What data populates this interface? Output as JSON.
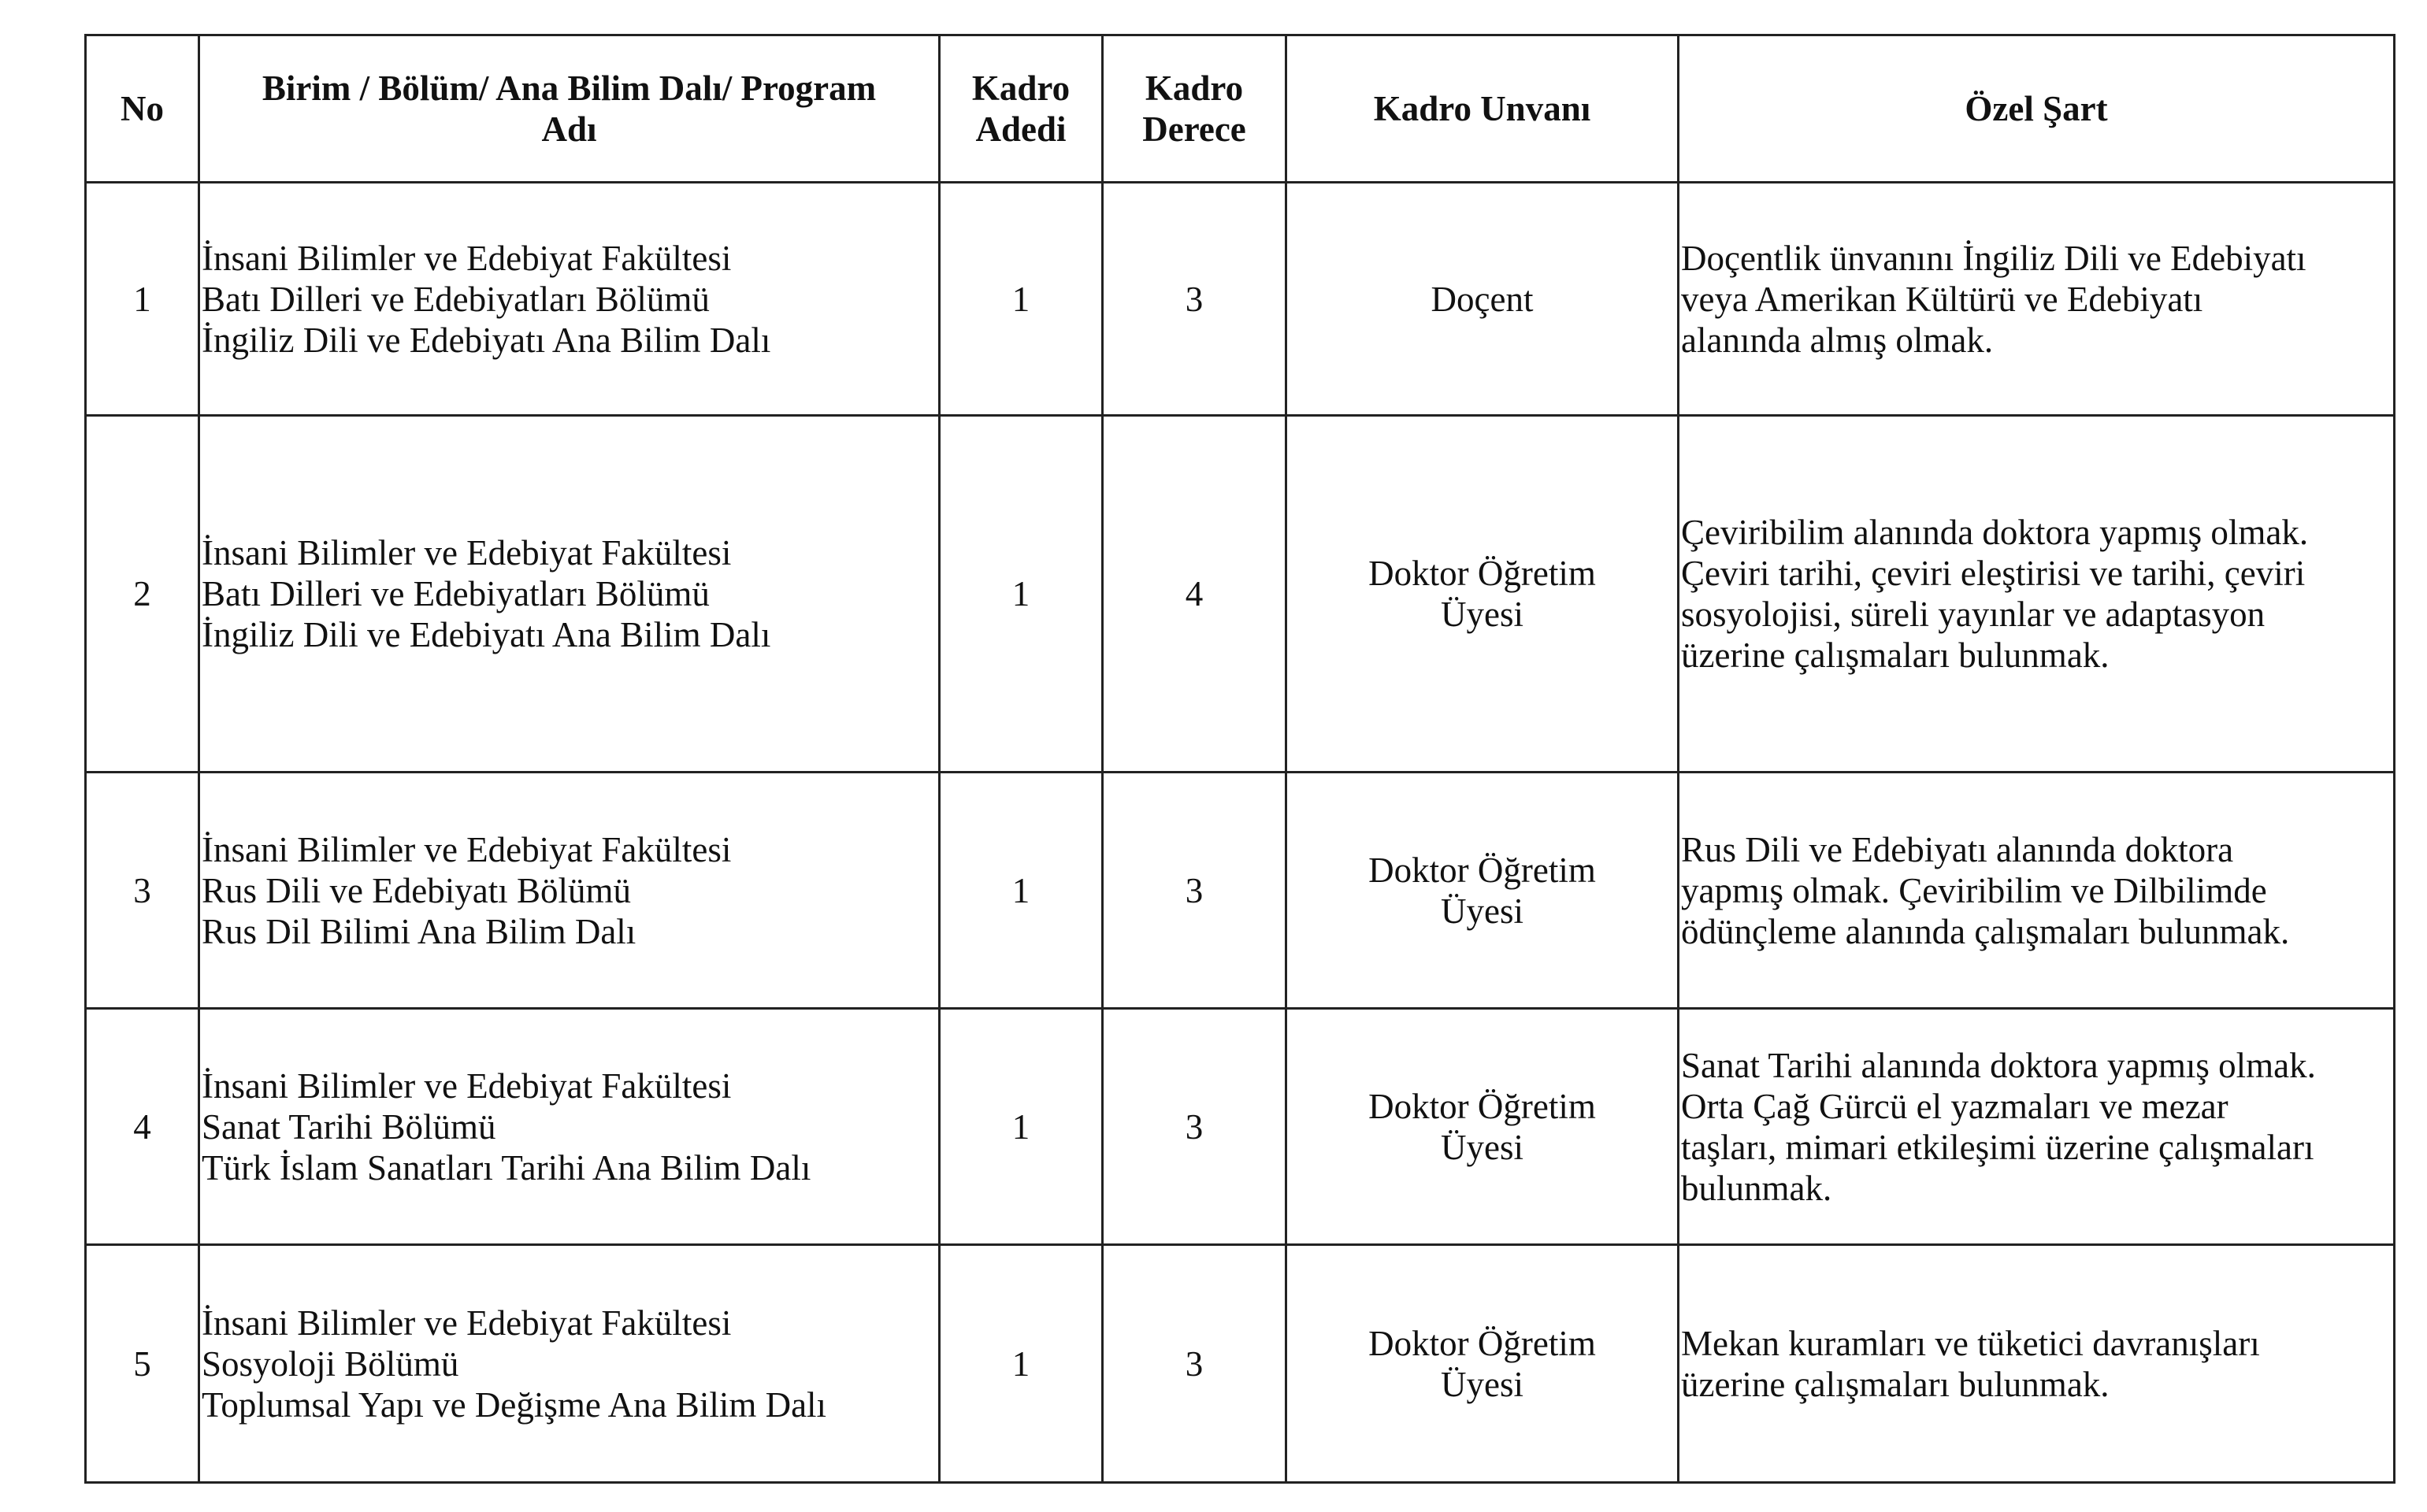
{
  "headers": {
    "no": "No",
    "unit": [
      "Birim / Bölüm/ Ana Bilim Dalı/ Program",
      "Adı"
    ],
    "count": [
      "Kadro",
      "Adedi"
    ],
    "degree": [
      "Kadro",
      "Derece"
    ],
    "title": "Kadro Unvanı",
    "condition": "Özel Şart"
  },
  "rows": [
    {
      "no": "1",
      "unit": [
        "İnsani Bilimler ve Edebiyat Fakültesi",
        "Batı Dilleri ve Edebiyatları Bölümü",
        "İngiliz Dili ve Edebiyatı Ana Bilim Dalı"
      ],
      "count": "1",
      "degree": "3",
      "title": [
        "Doçent"
      ],
      "condition": [
        "Doçentlik ünvanını İngiliz Dili ve Edebiyatı",
        "veya Amerikan Kültürü ve Edebiyatı",
        "alanında almış olmak."
      ]
    },
    {
      "no": "2",
      "unit": [
        "İnsani Bilimler ve Edebiyat Fakültesi",
        "Batı Dilleri ve Edebiyatları Bölümü",
        "İngiliz Dili ve Edebiyatı Ana Bilim Dalı"
      ],
      "count": "1",
      "degree": "4",
      "title": [
        "Doktor Öğretim",
        "Üyesi"
      ],
      "condition": [
        "Çeviribilim alanında doktora yapmış olmak.",
        "Çeviri tarihi, çeviri eleştirisi ve tarihi, çeviri",
        "sosyolojisi, süreli yayınlar ve adaptasyon",
        "üzerine çalışmaları bulunmak."
      ]
    },
    {
      "no": "3",
      "unit": [
        "İnsani Bilimler ve Edebiyat Fakültesi",
        "Rus Dili ve Edebiyatı Bölümü",
        "Rus Dil Bilimi Ana Bilim Dalı"
      ],
      "count": "1",
      "degree": "3",
      "title": [
        "Doktor Öğretim",
        "Üyesi"
      ],
      "condition": [
        "Rus Dili ve Edebiyatı alanında doktora",
        "yapmış olmak. Çeviribilim ve Dilbilimde",
        "ödünçleme alanında çalışmaları bulunmak."
      ]
    },
    {
      "no": "4",
      "unit": [
        "İnsani Bilimler ve Edebiyat Fakültesi",
        "Sanat Tarihi Bölümü",
        "Türk İslam Sanatları Tarihi Ana Bilim Dalı"
      ],
      "count": "1",
      "degree": "3",
      "title": [
        "Doktor Öğretim",
        "Üyesi"
      ],
      "condition": [
        "Sanat Tarihi alanında doktora yapmış olmak.",
        "Orta Çağ Gürcü el yazmaları ve mezar",
        "taşları, mimari etkileşimi üzerine çalışmaları",
        "bulunmak."
      ]
    },
    {
      "no": "5",
      "unit": [
        "İnsani Bilimler ve Edebiyat Fakültesi",
        "Sosyoloji Bölümü",
        "Toplumsal Yapı ve Değişme Ana Bilim Dalı"
      ],
      "count": "1",
      "degree": "3",
      "title": [
        "Doktor Öğretim",
        "Üyesi"
      ],
      "condition": [
        "Mekan kuramları ve tüketici davranışları",
        "üzerine çalışmaları bulunmak."
      ]
    }
  ]
}
